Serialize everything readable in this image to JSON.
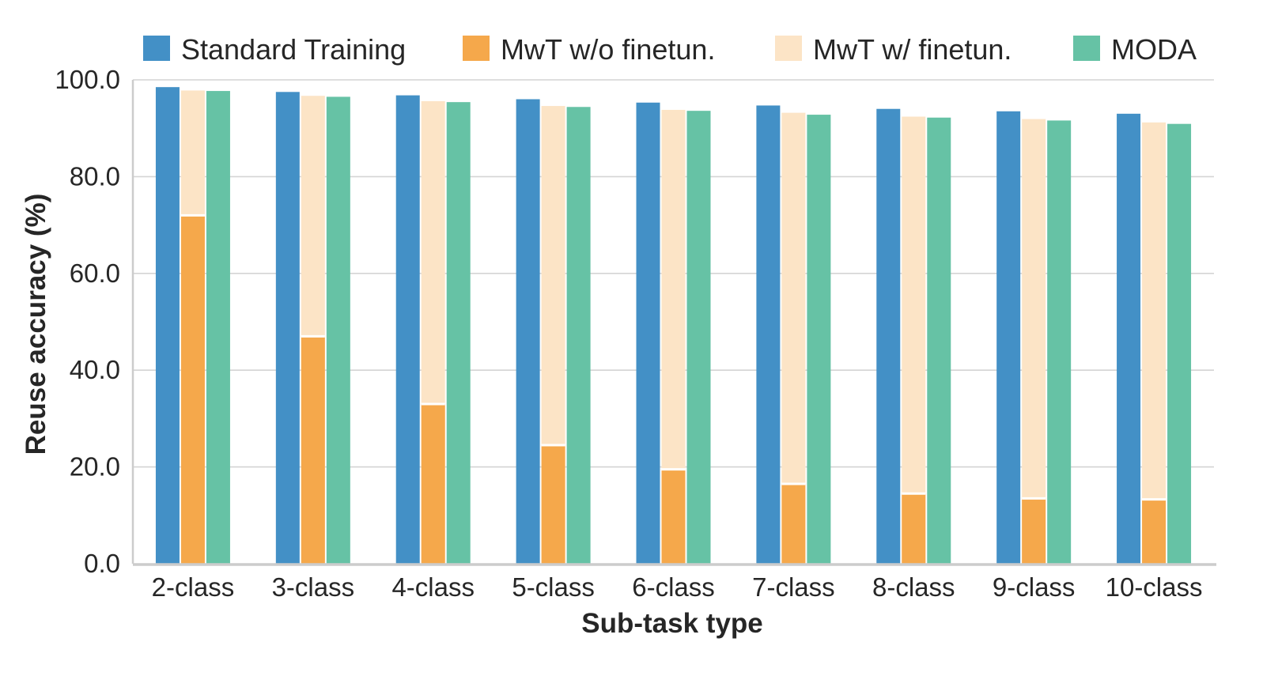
{
  "chart_data": {
    "type": "bar",
    "xlabel": "Sub-task type",
    "ylabel": "Reuse accuracy (%)",
    "ylim": [
      0,
      100
    ],
    "yticks": [
      "0.0",
      "20.0",
      "40.0",
      "60.0",
      "80.0",
      "100.0"
    ],
    "grid": "horizontal",
    "legend_position": "top",
    "categories": [
      "2-class",
      "3-class",
      "4-class",
      "5-class",
      "6-class",
      "7-class",
      "8-class",
      "9-class",
      "10-class"
    ],
    "series": [
      {
        "name": "Standard Training",
        "color": "#4390c6",
        "values": [
          98.5,
          97.5,
          96.8,
          96.0,
          95.3,
          94.7,
          94.0,
          93.5,
          93.0
        ]
      },
      {
        "name": "MwT w/o finetun.",
        "color": "#f5a84b",
        "values": [
          72.0,
          47.0,
          33.0,
          24.5,
          19.5,
          16.5,
          14.5,
          13.5,
          13.3
        ]
      },
      {
        "name": "MwT w/ finetun.",
        "color": "#fce4c6",
        "values": [
          97.8,
          96.7,
          95.6,
          94.6,
          93.8,
          93.2,
          92.4,
          91.9,
          91.2
        ]
      },
      {
        "name": "MODA",
        "color": "#66c2a5",
        "values": [
          97.7,
          96.5,
          95.4,
          94.4,
          93.6,
          92.8,
          92.2,
          91.6,
          90.9
        ]
      }
    ]
  }
}
